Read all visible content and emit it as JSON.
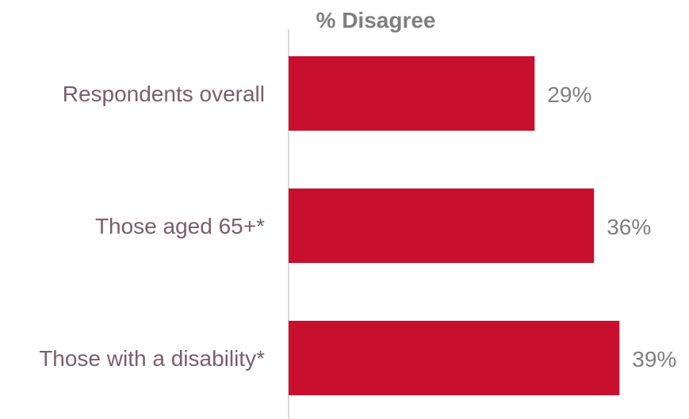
{
  "chart_data": {
    "type": "bar",
    "orientation": "horizontal",
    "title": "% Disagree",
    "categories": [
      "Respondents overall",
      "Those aged 65+*",
      "Those with a disability*"
    ],
    "values": [
      29,
      36,
      39
    ],
    "value_labels": [
      "29%",
      "36%",
      "39%"
    ],
    "xlim": [
      0,
      45
    ],
    "grid": false,
    "legend": "none",
    "colors": {
      "bar": "#c8102e",
      "axis": "#d9d9d9",
      "category_text": "#7a5e6b",
      "value_text": "#7f7f7f",
      "title_text": "#7f7f7f"
    }
  }
}
